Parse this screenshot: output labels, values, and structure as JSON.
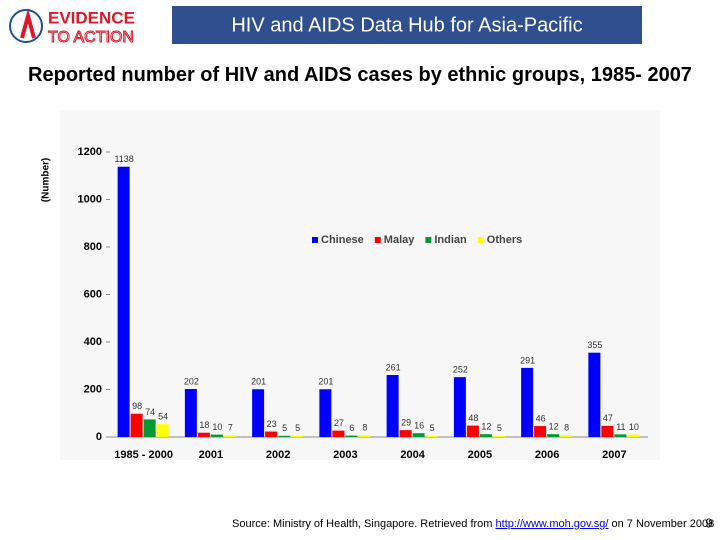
{
  "header": {
    "logo_top": "EVIDENCE",
    "logo_bottom": "TO ACTION",
    "title": "HIV and AIDS Data Hub for Asia-Pacific"
  },
  "chart_data": {
    "type": "bar",
    "title": "Reported number of HIV and AIDS cases by ethnic groups, 1985- 2007",
    "ylabel": "(Number)",
    "categories": [
      "1985 - 2000",
      "2001",
      "2002",
      "2003",
      "2004",
      "2005",
      "2006",
      "2007"
    ],
    "series": [
      {
        "name": "Chinese",
        "color": "#0000ff",
        "values": [
          1138,
          202,
          201,
          201,
          261,
          252,
          291,
          355
        ]
      },
      {
        "name": "Malay",
        "color": "#ff0000",
        "values": [
          98,
          18,
          23,
          27,
          29,
          48,
          46,
          47
        ]
      },
      {
        "name": "Indian",
        "color": "#009933",
        "values": [
          74,
          10,
          5,
          6,
          16,
          12,
          12,
          11
        ]
      },
      {
        "name": "Others",
        "color": "#ffff00",
        "values": [
          54,
          7,
          5,
          8,
          5,
          5,
          8,
          10
        ]
      }
    ],
    "ylim": [
      0,
      1200
    ],
    "yticks": [
      0,
      200,
      400,
      600,
      800,
      1000,
      1200
    ],
    "legend": "center"
  },
  "footer": {
    "source_prefix": "Source: Ministry of Health, Singapore. Retrieved from ",
    "source_link": "http://www.moh.gov.sg/",
    "source_suffix": " on 7 November 2008",
    "page_number": 9
  }
}
